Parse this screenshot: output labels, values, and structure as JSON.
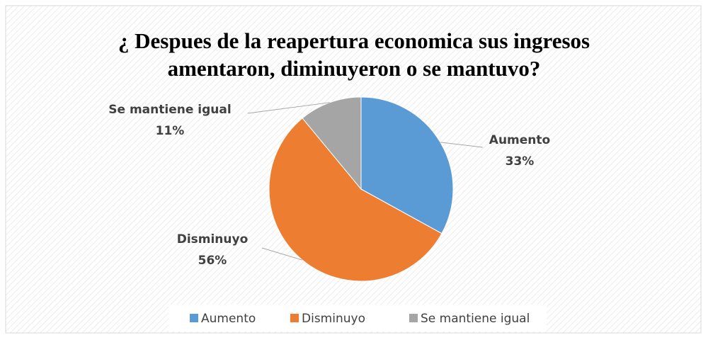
{
  "chart_data": {
    "type": "pie",
    "title": "¿ Despues de la reapertura economica sus ingresos amentaron, diminuyeron o se mantuvo?",
    "categories": [
      "Aumento",
      "Disminuyo",
      "Se mantiene igual"
    ],
    "values": [
      33,
      56,
      11
    ],
    "value_labels": [
      "33%",
      "56%",
      "11%"
    ],
    "colors": [
      "#5b9bd5",
      "#ed7d31",
      "#a5a5a5"
    ],
    "legend": "bottom"
  }
}
